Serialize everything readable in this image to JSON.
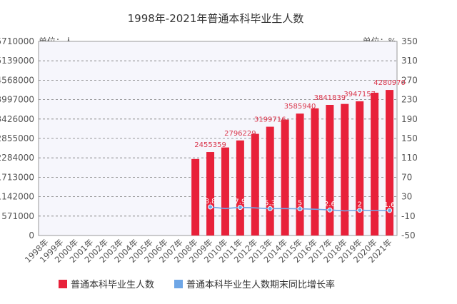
{
  "chart_data": {
    "type": "bar+line",
    "title": "1998年-2021年普通本科毕业生人数",
    "left_unit": "单位：人",
    "right_unit": "单位：%",
    "categories": [
      "1998年",
      "1999年",
      "2000年",
      "2001年",
      "2002年",
      "2003年",
      "2004年",
      "2005年",
      "2006年",
      "2007年",
      "2008年",
      "2009年",
      "2010年",
      "2011年",
      "2012年",
      "2013年",
      "2014年",
      "2015年",
      "2016年",
      "2017年",
      "2018年",
      "2019年",
      "2020年",
      "2021年"
    ],
    "y_left_ticks": [
      "0",
      "571000",
      "1142000",
      "1713000",
      "2284000",
      "2855000",
      "3426000",
      "3997000",
      "4568000",
      "5139000",
      "5710000"
    ],
    "y_left_range": [
      0,
      5710000
    ],
    "y_right_ticks": [
      "-50",
      "-10",
      "30",
      "70",
      "110",
      "150",
      "190",
      "230",
      "270",
      "310",
      "350"
    ],
    "y_right_range": [
      -50,
      350
    ],
    "series": [
      {
        "name": "普通本科毕业生人数",
        "kind": "bar",
        "color": "#e8213a",
        "values": [
          null,
          null,
          null,
          null,
          null,
          null,
          null,
          null,
          null,
          null,
          2250000,
          2455359,
          2590000,
          2796229,
          2990000,
          3199716,
          3410000,
          3585940,
          3741000,
          3841839,
          3870000,
          3947157,
          4200000,
          4280970
        ],
        "labels": [
          "",
          "",
          "",
          "",
          "",
          "",
          "",
          "",
          "",
          "",
          "",
          "2455359",
          "",
          "2796229",
          "",
          "3199716",
          "",
          "3585940",
          "",
          "3841839",
          "",
          "3947157",
          "",
          "4280970"
        ]
      },
      {
        "name": "普通本科毕业生人数期末同比增长率",
        "kind": "line",
        "color": "#6ea6e6",
        "values": [
          null,
          null,
          null,
          null,
          null,
          null,
          null,
          null,
          null,
          null,
          null,
          8.8,
          5.5,
          7.9,
          6.9,
          5.3,
          5.5,
          5.0,
          4.1,
          2.6,
          0.8,
          2.0,
          1.4,
          1.6
        ],
        "labels": [
          "",
          "",
          "",
          "",
          "",
          "",
          "",
          "",
          "",
          "",
          "",
          "8.8",
          "",
          "7.9",
          "",
          "5.3",
          "",
          "5",
          "",
          "2.6",
          "",
          "2",
          "",
          "1.6"
        ]
      }
    ],
    "grid": "dashed horizontal",
    "legend_position": "bottom"
  }
}
